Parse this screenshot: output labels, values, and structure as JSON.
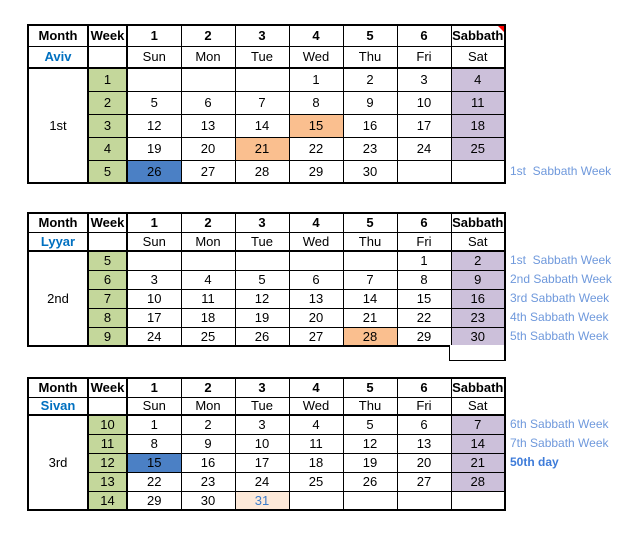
{
  "colors": {
    "grid_line": "#000000",
    "background": "#FFFFFF",
    "week_fill_green": "#C4D79B",
    "sabbath_fill_purple": "#CCC0DA",
    "highlight_orange": "#FABF8F",
    "highlight_blue": "#4B80C5",
    "highlight_peach": "#FDE9D9",
    "peach_text_blue": "#3E7CC9",
    "month_name_blue": "#0070C0",
    "annotation_blue": "#6F99DC",
    "annotation_bold_blue": "#3D7BD9",
    "comment_marker_red": "#FF0000"
  },
  "header": {
    "month": "Month",
    "week": "Week",
    "day_numbers": [
      "1",
      "2",
      "3",
      "4",
      "5",
      "6"
    ],
    "sabbath": "Sabbath",
    "day_names": [
      "Sun",
      "Mon",
      "Tue",
      "Wed",
      "Thu",
      "Fri",
      "Sat"
    ]
  },
  "tables": [
    {
      "month_name": "Aviv",
      "month_ordinal": "1st",
      "has_comment_marker": true,
      "rows": [
        {
          "week": "1",
          "days": [
            "",
            "",
            "",
            "1",
            "2",
            "3",
            "4"
          ],
          "fills": [
            "",
            "",
            "",
            "",
            "",
            "",
            "purple"
          ]
        },
        {
          "week": "2",
          "days": [
            "5",
            "6",
            "7",
            "8",
            "9",
            "10",
            "11"
          ],
          "fills": [
            "",
            "",
            "",
            "",
            "",
            "",
            "purple"
          ]
        },
        {
          "week": "3",
          "days": [
            "12",
            "13",
            "14",
            "15",
            "16",
            "17",
            "18"
          ],
          "fills": [
            "",
            "",
            "",
            "orange",
            "",
            "",
            "purple"
          ]
        },
        {
          "week": "4",
          "days": [
            "19",
            "20",
            "21",
            "22",
            "23",
            "24",
            "25"
          ],
          "fills": [
            "",
            "",
            "orange",
            "",
            "",
            "",
            "purple"
          ]
        },
        {
          "week": "5",
          "days": [
            "26",
            "27",
            "28",
            "29",
            "30",
            "",
            ""
          ],
          "fills": [
            "blue",
            "",
            "",
            "",
            "",
            "",
            ""
          ],
          "annotation": "1st  Sabbath Week"
        }
      ]
    },
    {
      "month_name": "Lyyar",
      "month_ordinal": "2nd",
      "has_trailing_cell": true,
      "rows": [
        {
          "week": "5",
          "days": [
            "",
            "",
            "",
            "",
            "",
            "1",
            "2"
          ],
          "fills": [
            "",
            "",
            "",
            "",
            "",
            "",
            "purple"
          ],
          "annotation": "1st  Sabbath Week"
        },
        {
          "week": "6",
          "days": [
            "3",
            "4",
            "5",
            "6",
            "7",
            "8",
            "9"
          ],
          "fills": [
            "",
            "",
            "",
            "",
            "",
            "",
            "purple"
          ],
          "annotation": "2nd Sabbath Week"
        },
        {
          "week": "7",
          "days": [
            "10",
            "11",
            "12",
            "13",
            "14",
            "15",
            "16"
          ],
          "fills": [
            "",
            "",
            "",
            "",
            "",
            "",
            "purple"
          ],
          "annotation": "3rd Sabbath Week"
        },
        {
          "week": "8",
          "days": [
            "17",
            "18",
            "19",
            "20",
            "21",
            "22",
            "23"
          ],
          "fills": [
            "",
            "",
            "",
            "",
            "",
            "",
            "purple"
          ],
          "annotation": "4th Sabbath Week"
        },
        {
          "week": "9",
          "days": [
            "24",
            "25",
            "26",
            "27",
            "28",
            "29",
            "30"
          ],
          "fills": [
            "",
            "",
            "",
            "",
            "orange",
            "",
            "purple"
          ],
          "annotation": "5th Sabbath Week"
        }
      ]
    },
    {
      "month_name": "Sivan",
      "month_ordinal": "3rd",
      "rows": [
        {
          "week": "10",
          "days": [
            "1",
            "2",
            "3",
            "4",
            "5",
            "6",
            "7"
          ],
          "fills": [
            "",
            "",
            "",
            "",
            "",
            "",
            "purple"
          ],
          "annotation": "6th Sabbath Week"
        },
        {
          "week": "11",
          "days": [
            "8",
            "9",
            "10",
            "11",
            "12",
            "13",
            "14"
          ],
          "fills": [
            "",
            "",
            "",
            "",
            "",
            "",
            "purple"
          ],
          "annotation": "7th Sabbath Week"
        },
        {
          "week": "12",
          "days": [
            "15",
            "16",
            "17",
            "18",
            "19",
            "20",
            "21"
          ],
          "fills": [
            "blue",
            "",
            "",
            "",
            "",
            "",
            "purple"
          ],
          "annotation": "50th day",
          "annotation_bold": true
        },
        {
          "week": "13",
          "days": [
            "22",
            "23",
            "24",
            "25",
            "26",
            "27",
            "28"
          ],
          "fills": [
            "",
            "",
            "",
            "",
            "",
            "",
            "purple"
          ]
        },
        {
          "week": "14",
          "days": [
            "29",
            "30",
            "31",
            "",
            "",
            "",
            ""
          ],
          "fills": [
            "",
            "",
            "peach",
            "",
            "",
            "",
            ""
          ]
        }
      ]
    }
  ]
}
